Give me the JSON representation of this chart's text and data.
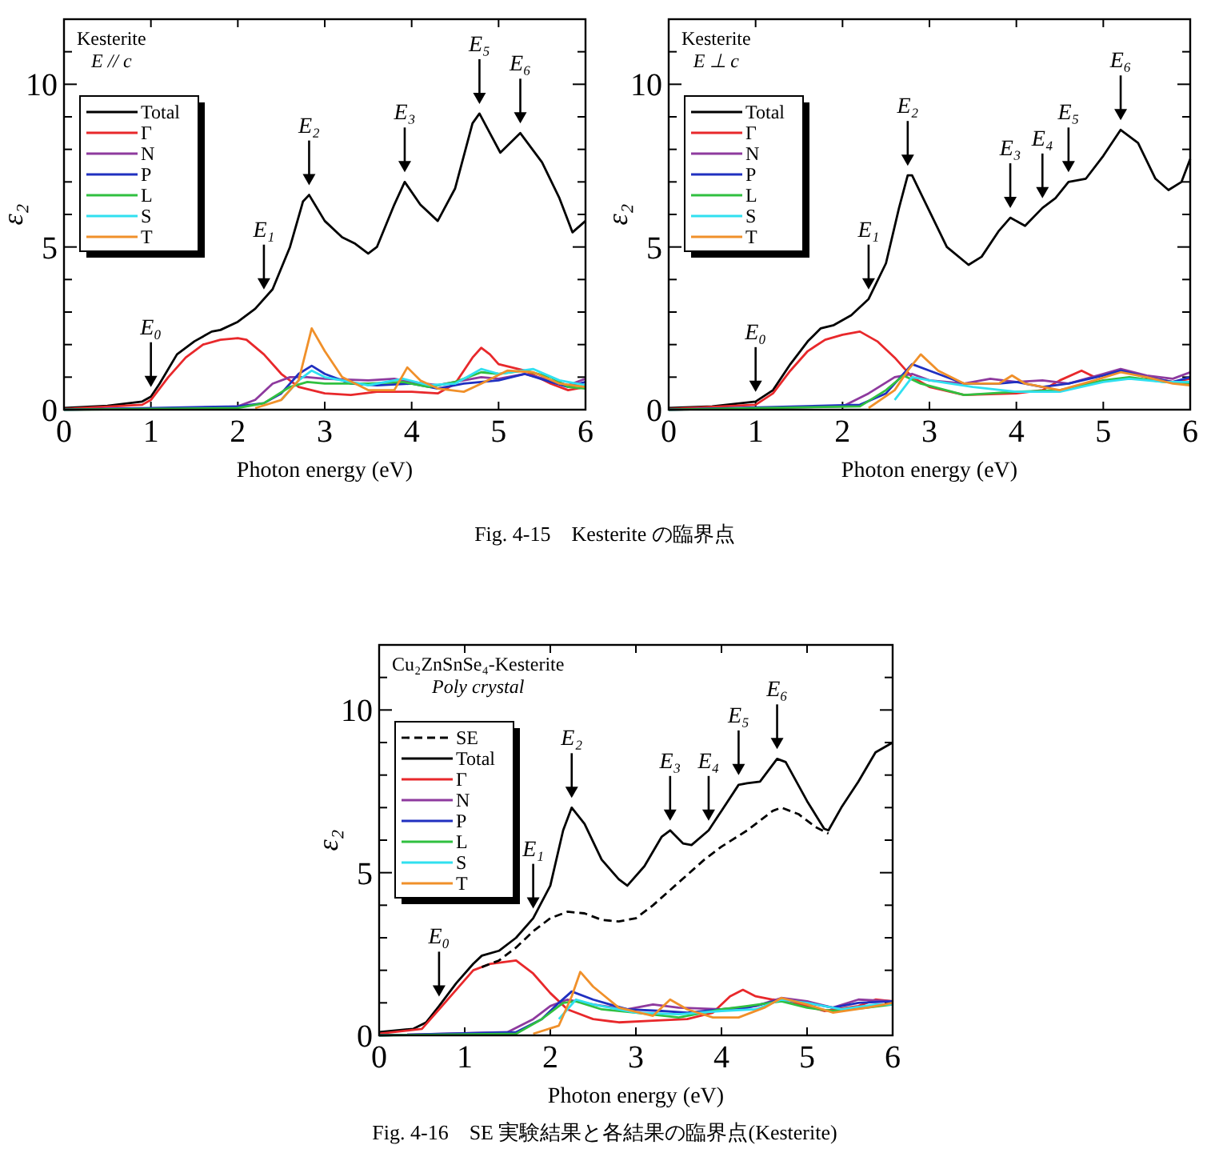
{
  "chart_data": [
    {
      "type": "line",
      "title": "Kesterite",
      "subtitle": "E // c",
      "xlabel": "Photon energy (eV)",
      "ylabel": "ε₂",
      "xlim": [
        0,
        6
      ],
      "ylim": [
        0,
        12
      ],
      "xticks": [
        0,
        1,
        2,
        3,
        4,
        5,
        6
      ],
      "yticks": [
        0,
        {
          "value": 1,
          "label": null
        },
        {
          "value": 2,
          "label": null
        },
        {
          "value": 3,
          "label": null
        },
        {
          "value": 4,
          "label": null
        },
        5,
        {
          "value": 6,
          "label": null
        },
        {
          "value": 7,
          "label": null
        },
        {
          "value": 8,
          "label": null
        },
        {
          "value": 9,
          "label": null
        },
        10,
        {
          "value": 11,
          "label": null
        }
      ],
      "legend": "top left",
      "grid": false,
      "marker": "none",
      "series": [
        {
          "name": "Total",
          "color": "#000000",
          "x": [
            0,
            0.5,
            0.9,
            1.0,
            1.1,
            1.3,
            1.5,
            1.7,
            1.8,
            2.0,
            2.2,
            2.4,
            2.6,
            2.75,
            2.82,
            3.0,
            3.2,
            3.35,
            3.5,
            3.6,
            3.8,
            3.92,
            4.1,
            4.3,
            4.5,
            4.7,
            4.78,
            4.9,
            5.02,
            5.25,
            5.5,
            5.7,
            5.85,
            6.0
          ],
          "values": [
            0.05,
            0.12,
            0.25,
            0.4,
            0.8,
            1.7,
            2.1,
            2.4,
            2.45,
            2.7,
            3.1,
            3.7,
            5.0,
            6.4,
            6.6,
            5.8,
            5.3,
            5.1,
            4.8,
            5.0,
            6.3,
            7.0,
            6.3,
            5.8,
            6.8,
            8.8,
            9.1,
            8.5,
            7.9,
            8.5,
            7.6,
            6.5,
            5.45,
            5.8
          ]
        },
        {
          "name": "Γ",
          "color": "#e8282b",
          "x": [
            0,
            0.9,
            1.0,
            1.2,
            1.4,
            1.6,
            1.8,
            2.0,
            2.1,
            2.3,
            2.5,
            2.7,
            3.0,
            3.3,
            3.6,
            4.0,
            4.3,
            4.5,
            4.7,
            4.8,
            4.9,
            5.0,
            5.3,
            5.6,
            5.8,
            6.0
          ],
          "values": [
            0.02,
            0.15,
            0.3,
            1.0,
            1.6,
            2.0,
            2.15,
            2.2,
            2.15,
            1.7,
            1.1,
            0.7,
            0.5,
            0.45,
            0.55,
            0.55,
            0.5,
            0.8,
            1.6,
            1.9,
            1.7,
            1.4,
            1.2,
            0.8,
            0.6,
            0.7
          ]
        },
        {
          "name": "N",
          "color": "#8e3a9e",
          "x": [
            0,
            1.5,
            2.0,
            2.2,
            2.4,
            2.6,
            2.8,
            3.0,
            3.5,
            3.8,
            4.0,
            4.3,
            4.6,
            4.8,
            5.0,
            5.3,
            5.6,
            5.8,
            6.0
          ],
          "values": [
            0,
            0.05,
            0.1,
            0.3,
            0.8,
            1.0,
            1.0,
            0.95,
            0.9,
            0.95,
            0.85,
            0.75,
            0.9,
            1.0,
            0.95,
            1.1,
            0.9,
            0.75,
            0.95
          ]
        },
        {
          "name": "P",
          "color": "#2030c0",
          "x": [
            0,
            2.0,
            2.3,
            2.5,
            2.7,
            2.85,
            3.0,
            3.3,
            3.6,
            4.0,
            4.3,
            4.6,
            4.8,
            5.0,
            5.3,
            5.6,
            5.8,
            6.0
          ],
          "values": [
            0,
            0.1,
            0.2,
            0.5,
            1.1,
            1.35,
            1.1,
            0.8,
            0.75,
            0.8,
            0.65,
            0.8,
            0.85,
            0.9,
            1.1,
            0.85,
            0.7,
            0.85
          ]
        },
        {
          "name": "L",
          "color": "#30c040",
          "x": [
            0,
            2.0,
            2.3,
            2.6,
            2.8,
            3.0,
            3.5,
            3.9,
            4.2,
            4.5,
            4.8,
            5.0,
            5.3,
            5.6,
            5.8,
            6.0
          ],
          "values": [
            0,
            0.05,
            0.2,
            0.7,
            0.85,
            0.8,
            0.8,
            0.85,
            0.7,
            0.85,
            1.15,
            1.1,
            1.2,
            1.0,
            0.7,
            0.65
          ]
        },
        {
          "name": "S",
          "color": "#30e0f0",
          "x": [
            2.5,
            2.7,
            2.85,
            3.0,
            3.5,
            3.9,
            4.2,
            4.5,
            4.8,
            5.0,
            5.4,
            5.7,
            6.0
          ],
          "values": [
            0.3,
            0.9,
            1.2,
            1.0,
            0.75,
            0.95,
            0.75,
            0.8,
            1.25,
            1.1,
            1.25,
            0.9,
            0.75
          ]
        },
        {
          "name": "T",
          "color": "#f0902a",
          "x": [
            2.2,
            2.5,
            2.7,
            2.85,
            3.0,
            3.2,
            3.5,
            3.8,
            3.95,
            4.1,
            4.3,
            4.6,
            4.8,
            5.1,
            5.4,
            5.7,
            6.0
          ],
          "values": [
            0.05,
            0.3,
            0.9,
            2.5,
            1.8,
            1.0,
            0.6,
            0.6,
            1.3,
            0.9,
            0.65,
            0.55,
            0.8,
            1.2,
            1.15,
            0.8,
            0.7
          ]
        }
      ],
      "annotations": [
        {
          "text": "E₀",
          "x": 1.0,
          "y": 0.4
        },
        {
          "text": "E₁",
          "x": 2.3,
          "y": 3.4
        },
        {
          "text": "E₂",
          "x": 2.82,
          "y": 6.6
        },
        {
          "text": "E₃",
          "x": 3.92,
          "y": 7.0
        },
        {
          "text": "E₅",
          "x": 4.78,
          "y": 9.1
        },
        {
          "text": "E₆",
          "x": 5.25,
          "y": 8.5
        },
        "Fig. 4-15　Kesterite の臨界点"
      ]
    },
    {
      "type": "line",
      "title": "Kesterite",
      "subtitle": "E ⊥ c",
      "xlabel": "Photon energy (eV)",
      "ylabel": "ε₂",
      "xlim": [
        0,
        6
      ],
      "ylim": [
        0,
        12
      ],
      "xticks": [
        0,
        1,
        2,
        3,
        4,
        5,
        6
      ],
      "yticks": [
        0,
        {
          "value": 1,
          "label": null
        },
        {
          "value": 2,
          "label": null
        },
        {
          "value": 3,
          "label": null
        },
        {
          "value": 4,
          "label": null
        },
        5,
        {
          "value": 6,
          "label": null
        },
        {
          "value": 7,
          "label": null
        },
        {
          "value": 8,
          "label": null
        },
        {
          "value": 9,
          "label": null
        },
        10,
        {
          "value": 11,
          "label": null
        }
      ],
      "legend": "top left",
      "grid": false,
      "marker": "none",
      "series": [
        {
          "name": "Total",
          "color": "#000000",
          "x": [
            0,
            0.5,
            1.0,
            1.2,
            1.4,
            1.6,
            1.75,
            1.9,
            2.1,
            2.3,
            2.5,
            2.65,
            2.75,
            2.8,
            3.0,
            3.2,
            3.45,
            3.6,
            3.8,
            3.93,
            4.1,
            4.3,
            4.45,
            4.6,
            4.8,
            5.0,
            5.2,
            5.4,
            5.6,
            5.75,
            5.9,
            6.0
          ],
          "values": [
            0.05,
            0.1,
            0.25,
            0.6,
            1.4,
            2.1,
            2.5,
            2.6,
            2.9,
            3.4,
            4.5,
            6.2,
            7.2,
            7.2,
            6.1,
            5.0,
            4.45,
            4.7,
            5.5,
            5.9,
            5.65,
            6.2,
            6.5,
            7.0,
            7.1,
            7.8,
            8.6,
            8.2,
            7.1,
            6.75,
            7.0,
            7.7
          ]
        },
        {
          "name": "Γ",
          "color": "#e8282b",
          "x": [
            0,
            1.0,
            1.2,
            1.4,
            1.6,
            1.8,
            2.0,
            2.2,
            2.4,
            2.6,
            2.8,
            3.0,
            3.4,
            4.0,
            4.3,
            4.5,
            4.75,
            4.9,
            5.2,
            5.5,
            5.8,
            6.0
          ],
          "values": [
            0.02,
            0.15,
            0.5,
            1.2,
            1.8,
            2.15,
            2.3,
            2.4,
            2.1,
            1.6,
            1.0,
            0.7,
            0.45,
            0.5,
            0.6,
            0.9,
            1.2,
            1.0,
            1.2,
            1.0,
            0.85,
            0.95
          ]
        },
        {
          "name": "N",
          "color": "#8e3a9e",
          "x": [
            0,
            2.0,
            2.3,
            2.6,
            2.8,
            3.0,
            3.4,
            3.7,
            4.0,
            4.3,
            4.6,
            5.0,
            5.2,
            5.5,
            5.8,
            6.0
          ],
          "values": [
            0,
            0.1,
            0.5,
            1.0,
            1.1,
            0.9,
            0.8,
            0.95,
            0.85,
            0.9,
            0.8,
            1.1,
            1.25,
            1.05,
            0.95,
            1.15
          ]
        },
        {
          "name": "P",
          "color": "#2030c0",
          "x": [
            0,
            2.2,
            2.5,
            2.8,
            3.0,
            3.4,
            3.8,
            4.0,
            4.3,
            4.6,
            5.0,
            5.2,
            5.5,
            5.8,
            6.0
          ],
          "values": [
            0,
            0.15,
            0.5,
            1.4,
            1.2,
            0.8,
            0.8,
            0.85,
            0.7,
            0.8,
            1.05,
            1.2,
            1.0,
            0.85,
            1.0
          ]
        },
        {
          "name": "L",
          "color": "#30c040",
          "x": [
            0,
            2.2,
            2.5,
            2.7,
            2.9,
            3.4,
            4.0,
            4.5,
            5.0,
            5.3,
            5.7,
            6.0
          ],
          "values": [
            0,
            0.1,
            0.6,
            1.05,
            0.8,
            0.45,
            0.55,
            0.6,
            0.9,
            1.0,
            0.85,
            0.8
          ]
        },
        {
          "name": "S",
          "color": "#30e0f0",
          "x": [
            2.6,
            2.8,
            3.0,
            3.5,
            4.0,
            4.5,
            5.0,
            5.3,
            5.7,
            6.0
          ],
          "values": [
            0.3,
            1.0,
            0.9,
            0.7,
            0.55,
            0.55,
            0.85,
            0.95,
            0.85,
            0.85
          ]
        },
        {
          "name": "T",
          "color": "#f0902a",
          "x": [
            2.3,
            2.6,
            2.75,
            2.9,
            3.1,
            3.4,
            3.8,
            3.95,
            4.1,
            4.5,
            4.9,
            5.2,
            5.5,
            5.8,
            6.0
          ],
          "values": [
            0.05,
            0.6,
            1.2,
            1.7,
            1.2,
            0.8,
            0.8,
            1.05,
            0.8,
            0.6,
            0.9,
            1.15,
            1.0,
            0.8,
            0.75
          ]
        }
      ],
      "annotations": [
        {
          "text": "E₀",
          "x": 1.0,
          "y": 0.25
        },
        {
          "text": "E₁",
          "x": 2.3,
          "y": 3.4
        },
        {
          "text": "E₂",
          "x": 2.75,
          "y": 7.2
        },
        {
          "text": "E₃",
          "x": 3.93,
          "y": 5.9
        },
        {
          "text": "E₄",
          "x": 4.3,
          "y": 6.2
        },
        {
          "text": "E₅",
          "x": 4.6,
          "y": 7.0
        },
        {
          "text": "E₆",
          "x": 5.2,
          "y": 8.6
        }
      ]
    },
    {
      "type": "line",
      "title": "Cu₂ZnSnSe₄-Kesterite",
      "subtitle": "Poly crystal",
      "xlabel": "Photon energy (eV)",
      "ylabel": "ε₂",
      "xlim": [
        0,
        6
      ],
      "ylim": [
        0,
        12
      ],
      "xticks": [
        0,
        1,
        2,
        3,
        4,
        5,
        6
      ],
      "yticks": [
        0,
        {
          "value": 1,
          "label": null
        },
        {
          "value": 2,
          "label": null
        },
        {
          "value": 3,
          "label": null
        },
        {
          "value": 4,
          "label": null
        },
        5,
        {
          "value": 6,
          "label": null
        },
        {
          "value": 7,
          "label": null
        },
        {
          "value": 8,
          "label": null
        },
        {
          "value": 9,
          "label": null
        },
        10,
        {
          "value": 11,
          "label": null
        }
      ],
      "legend": "top left",
      "grid": false,
      "marker": "none",
      "series": [
        {
          "name": "SE",
          "color": "#000000",
          "line_style": "dashed",
          "x": [
            1.2,
            1.4,
            1.6,
            1.8,
            2.0,
            2.2,
            2.4,
            2.6,
            2.8,
            3.0,
            3.2,
            3.5,
            3.8,
            4.0,
            4.3,
            4.6,
            4.7,
            4.9,
            5.1,
            5.25
          ],
          "values": [
            2.1,
            2.3,
            2.7,
            3.2,
            3.6,
            3.8,
            3.75,
            3.55,
            3.5,
            3.6,
            4.0,
            4.7,
            5.4,
            5.8,
            6.3,
            6.9,
            7.0,
            6.8,
            6.4,
            6.2
          ]
        },
        {
          "name": "Total",
          "color": "#000000",
          "x": [
            0,
            0.4,
            0.55,
            0.7,
            0.9,
            1.1,
            1.2,
            1.4,
            1.6,
            1.8,
            2.0,
            2.15,
            2.25,
            2.4,
            2.6,
            2.8,
            2.9,
            3.1,
            3.3,
            3.4,
            3.55,
            3.65,
            3.85,
            4.0,
            4.2,
            4.3,
            4.45,
            4.65,
            4.75,
            5.0,
            5.2,
            5.25,
            5.4,
            5.6,
            5.8,
            6.0
          ],
          "values": [
            0.1,
            0.2,
            0.4,
            0.9,
            1.6,
            2.2,
            2.45,
            2.6,
            3.0,
            3.6,
            4.6,
            6.3,
            7.0,
            6.5,
            5.4,
            4.8,
            4.6,
            5.2,
            6.1,
            6.3,
            5.9,
            5.85,
            6.3,
            6.9,
            7.7,
            7.75,
            7.8,
            8.5,
            8.4,
            7.2,
            6.35,
            6.3,
            7.0,
            7.8,
            8.7,
            9.0
          ]
        },
        {
          "name": "Γ",
          "color": "#e8282b",
          "x": [
            0,
            0.5,
            0.7,
            0.9,
            1.1,
            1.3,
            1.6,
            1.8,
            2.0,
            2.2,
            2.5,
            2.8,
            3.2,
            3.6,
            3.9,
            4.1,
            4.25,
            4.4,
            4.6,
            4.8,
            5.2,
            5.6,
            5.8,
            6.0
          ],
          "values": [
            0.05,
            0.2,
            0.8,
            1.4,
            2.0,
            2.2,
            2.3,
            1.9,
            1.3,
            0.8,
            0.5,
            0.4,
            0.45,
            0.5,
            0.7,
            1.2,
            1.4,
            1.2,
            1.1,
            1.05,
            0.75,
            0.9,
            1.1,
            1.05
          ]
        },
        {
          "name": "N",
          "color": "#8e3a9e",
          "x": [
            0,
            1.5,
            1.8,
            2.0,
            2.2,
            2.5,
            2.9,
            3.2,
            3.5,
            4.0,
            4.4,
            4.7,
            5.0,
            5.3,
            5.6,
            6.0
          ],
          "values": [
            0,
            0.1,
            0.5,
            0.9,
            1.1,
            0.95,
            0.8,
            0.95,
            0.85,
            0.8,
            0.9,
            1.15,
            1.05,
            0.85,
            1.1,
            1.05
          ]
        },
        {
          "name": "P",
          "color": "#2030c0",
          "x": [
            0,
            1.6,
            1.9,
            2.1,
            2.25,
            2.5,
            2.9,
            3.3,
            3.6,
            4.0,
            4.3,
            4.7,
            5.0,
            5.3,
            5.6,
            6.0
          ],
          "values": [
            0,
            0.1,
            0.5,
            1.0,
            1.35,
            1.1,
            0.8,
            0.75,
            0.7,
            0.8,
            0.85,
            1.1,
            1.0,
            0.85,
            1.0,
            1.05
          ]
        },
        {
          "name": "L",
          "color": "#30c040",
          "x": [
            0,
            1.6,
            1.9,
            2.15,
            2.3,
            2.6,
            3.0,
            3.5,
            4.0,
            4.3,
            4.7,
            5.0,
            5.3,
            5.7,
            6.0
          ],
          "values": [
            0,
            0.05,
            0.5,
            1.0,
            1.05,
            0.8,
            0.7,
            0.55,
            0.8,
            0.9,
            1.05,
            0.85,
            0.75,
            0.85,
            0.95
          ]
        },
        {
          "name": "S",
          "color": "#30e0f0",
          "x": [
            2.1,
            2.3,
            2.5,
            3.0,
            3.5,
            4.0,
            4.4,
            4.7,
            5.0,
            5.4,
            5.8,
            6.0
          ],
          "values": [
            0.5,
            1.1,
            0.95,
            0.7,
            0.65,
            0.75,
            0.8,
            1.1,
            1.0,
            0.8,
            0.95,
            0.95
          ]
        },
        {
          "name": "T",
          "color": "#f0902a",
          "x": [
            1.8,
            2.1,
            2.25,
            2.35,
            2.5,
            2.8,
            3.2,
            3.4,
            3.6,
            3.9,
            4.2,
            4.5,
            4.7,
            5.0,
            5.3,
            5.7,
            6.0
          ],
          "values": [
            0.05,
            0.3,
            1.2,
            1.95,
            1.5,
            0.85,
            0.6,
            1.1,
            0.8,
            0.55,
            0.55,
            0.85,
            1.15,
            0.95,
            0.7,
            0.85,
            1.0
          ]
        }
      ],
      "annotations": [
        {
          "text": "E₀",
          "x": 0.7,
          "y": 0.9
        },
        {
          "text": "E₁",
          "x": 1.8,
          "y": 3.6
        },
        {
          "text": "E₂",
          "x": 2.25,
          "y": 7.0
        },
        {
          "text": "E₃",
          "x": 3.4,
          "y": 6.3
        },
        {
          "text": "E₄",
          "x": 3.85,
          "y": 6.3
        },
        {
          "text": "E₅",
          "x": 4.2,
          "y": 7.7
        },
        {
          "text": "E₆",
          "x": 4.65,
          "y": 8.5
        },
        "Fig. 4-16　SE 実験結果と各結果の臨界点(Kesterite)"
      ]
    }
  ]
}
